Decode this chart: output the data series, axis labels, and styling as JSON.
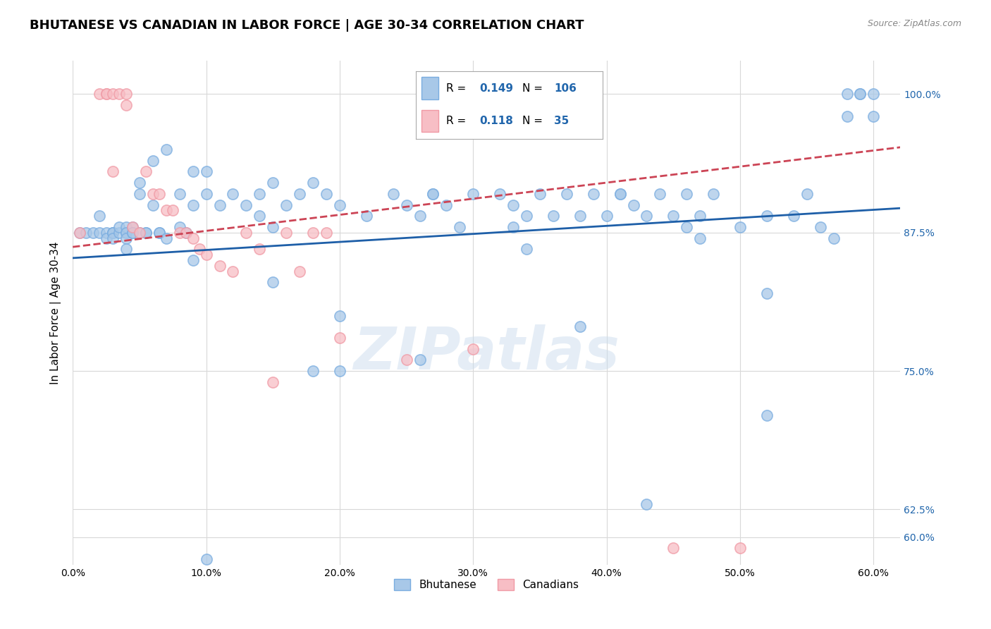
{
  "title": "BHUTANESE VS CANADIAN IN LABOR FORCE | AGE 30-34 CORRELATION CHART",
  "source": "Source: ZipAtlas.com",
  "ylabel": "In Labor Force | Age 30-34",
  "ytick_values": [
    0.6,
    0.625,
    0.75,
    0.875,
    1.0
  ],
  "ytick_labels": [
    "60.0%",
    "62.5%",
    "75.0%",
    "87.5%",
    "100.0%"
  ],
  "xtick_values": [
    0.0,
    0.1,
    0.2,
    0.3,
    0.4,
    0.5,
    0.6
  ],
  "xtick_labels": [
    "0.0%",
    "10.0%",
    "20.0%",
    "30.0%",
    "40.0%",
    "50.0%",
    "60.0%"
  ],
  "xlim": [
    0.0,
    0.62
  ],
  "ylim": [
    0.575,
    1.03
  ],
  "blue_face_color": "#a8c8e8",
  "blue_edge_color": "#7aade0",
  "pink_face_color": "#f7bec5",
  "pink_edge_color": "#f09aa5",
  "blue_line_color": "#1e5fa8",
  "pink_line_color": "#cc4455",
  "legend_text_color": "#1e5fa8",
  "right_tick_color": "#2166ac",
  "legend_R1": "0.149",
  "legend_N1": "106",
  "legend_R2": "0.118",
  "legend_N2": "35",
  "watermark": "ZIPatlas",
  "blue_scatter_x": [
    0.005,
    0.01,
    0.015,
    0.02,
    0.02,
    0.025,
    0.025,
    0.03,
    0.03,
    0.03,
    0.03,
    0.035,
    0.035,
    0.04,
    0.04,
    0.04,
    0.04,
    0.04,
    0.045,
    0.045,
    0.045,
    0.05,
    0.05,
    0.05,
    0.055,
    0.055,
    0.06,
    0.06,
    0.065,
    0.065,
    0.07,
    0.07,
    0.08,
    0.08,
    0.085,
    0.09,
    0.09,
    0.1,
    0.1,
    0.11,
    0.12,
    0.13,
    0.14,
    0.14,
    0.15,
    0.15,
    0.16,
    0.17,
    0.18,
    0.19,
    0.2,
    0.22,
    0.24,
    0.25,
    0.26,
    0.27,
    0.28,
    0.29,
    0.3,
    0.32,
    0.33,
    0.34,
    0.35,
    0.36,
    0.37,
    0.38,
    0.39,
    0.4,
    0.41,
    0.42,
    0.43,
    0.44,
    0.45,
    0.46,
    0.47,
    0.48,
    0.5,
    0.52,
    0.54,
    0.55,
    0.56,
    0.57,
    0.58,
    0.59,
    0.6,
    0.6,
    0.09,
    0.15,
    0.2,
    0.27,
    0.33,
    0.41,
    0.47,
    0.26,
    0.34,
    0.46,
    0.52,
    0.58,
    0.59,
    0.38,
    0.43,
    0.52,
    0.1,
    0.18,
    0.2
  ],
  "blue_scatter_y": [
    0.875,
    0.875,
    0.875,
    0.89,
    0.875,
    0.875,
    0.87,
    0.875,
    0.875,
    0.875,
    0.87,
    0.875,
    0.88,
    0.875,
    0.88,
    0.875,
    0.87,
    0.86,
    0.88,
    0.875,
    0.875,
    0.92,
    0.91,
    0.875,
    0.875,
    0.875,
    0.94,
    0.9,
    0.875,
    0.875,
    0.95,
    0.87,
    0.91,
    0.88,
    0.875,
    0.93,
    0.9,
    0.93,
    0.91,
    0.9,
    0.91,
    0.9,
    0.91,
    0.89,
    0.92,
    0.88,
    0.9,
    0.91,
    0.92,
    0.91,
    0.9,
    0.89,
    0.91,
    0.9,
    0.89,
    0.91,
    0.9,
    0.88,
    0.91,
    0.91,
    0.9,
    0.89,
    0.91,
    0.89,
    0.91,
    0.89,
    0.91,
    0.89,
    0.91,
    0.9,
    0.89,
    0.91,
    0.89,
    0.91,
    0.89,
    0.91,
    0.88,
    0.89,
    0.89,
    0.91,
    0.88,
    0.87,
    1.0,
    1.0,
    0.98,
    1.0,
    0.85,
    0.83,
    0.8,
    0.91,
    0.88,
    0.91,
    0.87,
    0.76,
    0.86,
    0.88,
    0.82,
    0.98,
    1.0,
    0.79,
    0.63,
    0.71,
    0.58,
    0.75,
    0.75
  ],
  "pink_scatter_x": [
    0.005,
    0.02,
    0.025,
    0.025,
    0.03,
    0.03,
    0.035,
    0.04,
    0.04,
    0.045,
    0.05,
    0.055,
    0.06,
    0.065,
    0.07,
    0.075,
    0.08,
    0.085,
    0.09,
    0.095,
    0.1,
    0.11,
    0.12,
    0.13,
    0.14,
    0.15,
    0.16,
    0.17,
    0.18,
    0.19,
    0.2,
    0.25,
    0.3,
    0.45,
    0.5
  ],
  "pink_scatter_y": [
    0.875,
    1.0,
    1.0,
    1.0,
    1.0,
    0.93,
    1.0,
    1.0,
    0.99,
    0.88,
    0.875,
    0.93,
    0.91,
    0.91,
    0.895,
    0.895,
    0.875,
    0.875,
    0.87,
    0.86,
    0.855,
    0.845,
    0.84,
    0.875,
    0.86,
    0.74,
    0.875,
    0.84,
    0.875,
    0.875,
    0.78,
    0.76,
    0.77,
    0.59,
    0.59
  ],
  "blue_trend_x": [
    0.0,
    0.62
  ],
  "blue_trend_y": [
    0.852,
    0.897
  ],
  "pink_trend_x": [
    0.0,
    0.62
  ],
  "pink_trend_y": [
    0.862,
    0.952
  ],
  "grid_color": "#d8d8d8",
  "title_fontsize": 13,
  "marker_size": 120
}
